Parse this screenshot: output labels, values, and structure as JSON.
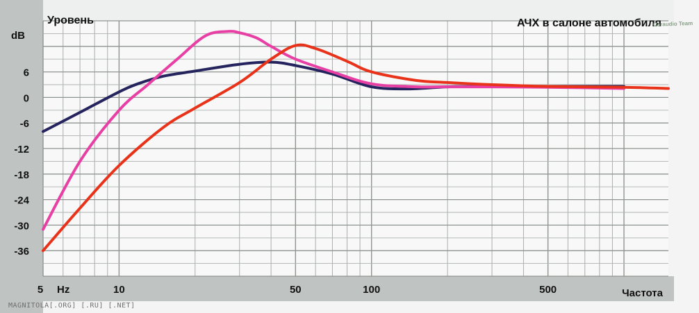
{
  "watermark": "MAGNITOLA[.ORG] [.RU] [.NET]",
  "brand": "Caraudio Team",
  "chart_data": {
    "type": "line",
    "title": "АЧХ в салоне автомобиля",
    "ylabel": "Уровень",
    "yunit": "dB",
    "xlabel": "Частота",
    "xunit": "Hz",
    "x_scale": "log",
    "xlim": [
      5,
      1500
    ],
    "ylim": [
      -42,
      18
    ],
    "grid": true,
    "yticks": [
      6,
      0,
      -6,
      -12,
      -18,
      -24,
      -30,
      -36
    ],
    "xticks": [
      {
        "value": 5,
        "label": "5"
      },
      {
        "value": 10,
        "label": "10"
      },
      {
        "value": 50,
        "label": "50"
      },
      {
        "value": 100,
        "label": "100"
      },
      {
        "value": 500,
        "label": "500"
      }
    ],
    "series": [
      {
        "color": "#25245e",
        "x": [
          5,
          7,
          10,
          12,
          15,
          20,
          30,
          40,
          50,
          70,
          100,
          140,
          200,
          300,
          500,
          800,
          1000
        ],
        "y": [
          -8,
          -3.5,
          1.3,
          3.3,
          5,
          6.2,
          7.8,
          8.3,
          7.5,
          5.5,
          2.5,
          2,
          2.5,
          2.6,
          2.6,
          2.6,
          2.6
        ]
      },
      {
        "color": "#e83fa5",
        "x": [
          5,
          7,
          10,
          13,
          17,
          22,
          27,
          30,
          35,
          40,
          50,
          70,
          100,
          150,
          200,
          300,
          500,
          1000
        ],
        "y": [
          -31,
          -15,
          -3,
          3,
          9,
          14.5,
          15.5,
          15.2,
          14,
          12,
          9,
          6,
          3.2,
          2.5,
          2.5,
          2.5,
          2.4,
          2.1
        ]
      },
      {
        "color": "#e8331a",
        "x": [
          5,
          7,
          10,
          15,
          20,
          30,
          40,
          50,
          60,
          80,
          100,
          150,
          200,
          300,
          500,
          1000,
          1500
        ],
        "y": [
          -36,
          -26,
          -16,
          -7,
          -2.5,
          3.5,
          9,
          12.2,
          11.5,
          8.5,
          6,
          4,
          3.5,
          3,
          2.6,
          2.4,
          2.1
        ]
      }
    ]
  }
}
